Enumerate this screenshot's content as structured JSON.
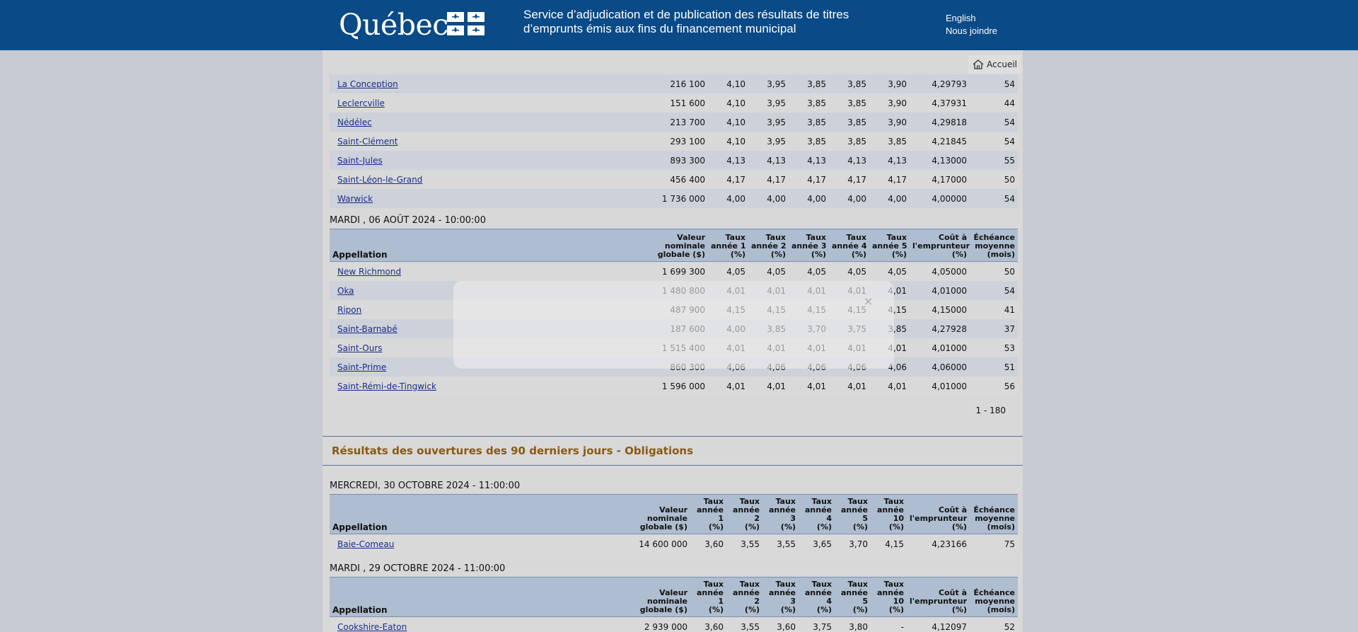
{
  "header": {
    "logo_text": "Québec",
    "title_line1": "Service d’adjudication et de publication des résultats de titres",
    "title_line2": "d’emprunts émis aux fins du financement municipal",
    "link_english": "English",
    "link_contact": "Nous joindre"
  },
  "nav": {
    "home_label": "Accueil"
  },
  "table1": {
    "rows": [
      [
        "La Conception",
        "216 100",
        "4,10",
        "3,95",
        "3,85",
        "3,85",
        "3,90",
        "4,29793",
        "54"
      ],
      [
        "Leclercville",
        "151 600",
        "4,10",
        "3,95",
        "3,85",
        "3,85",
        "3,90",
        "4,37931",
        "44"
      ],
      [
        "Nédélec",
        "213 700",
        "4,10",
        "3,95",
        "3,85",
        "3,85",
        "3,90",
        "4,29818",
        "54"
      ],
      [
        "Saint-Clément",
        "293 100",
        "4,10",
        "3,95",
        "3,85",
        "3,85",
        "3,85",
        "4,21845",
        "54"
      ],
      [
        "Saint-Jules",
        "893 300",
        "4,13",
        "4,13",
        "4,13",
        "4,13",
        "4,13",
        "4,13000",
        "55"
      ],
      [
        "Saint-Léon-le-Grand",
        "456 400",
        "4,17",
        "4,17",
        "4,17",
        "4,17",
        "4,17",
        "4,17000",
        "50"
      ],
      [
        "Warwick",
        "1 736 000",
        "4,00",
        "4,00",
        "4,00",
        "4,00",
        "4,00",
        "4,00000",
        "54"
      ]
    ]
  },
  "table2": {
    "date": "MARDI , 06 AOÛT 2024 - 10:00:00",
    "headers": [
      [
        "Appellation"
      ],
      [
        "Valeur",
        "nominale",
        "globale ($)"
      ],
      [
        "Taux",
        "année 1",
        "(%)"
      ],
      [
        "Taux",
        "année 2",
        "(%)"
      ],
      [
        "Taux",
        "année 3",
        "(%)"
      ],
      [
        "Taux",
        "année 4",
        "(%)"
      ],
      [
        "Taux",
        "année 5",
        "(%)"
      ],
      [
        "Coût à",
        "l'emprunteur",
        "(%)"
      ],
      [
        "Échéance",
        "moyenne",
        "(mois)"
      ]
    ],
    "rows": [
      [
        "New Richmond",
        "1 699 300",
        "4,05",
        "4,05",
        "4,05",
        "4,05",
        "4,05",
        "4,05000",
        "50"
      ],
      [
        "Oka",
        "1 480 800",
        "4,01",
        "4,01",
        "4,01",
        "4,01",
        "4,01",
        "4,01000",
        "54"
      ],
      [
        "Ripon",
        "487 900",
        "4,15",
        "4,15",
        "4,15",
        "4,15",
        "4,15",
        "4,15000",
        "41"
      ],
      [
        "Saint-Barnabé",
        "187 600",
        "4,00",
        "3,85",
        "3,70",
        "3,75",
        "3,85",
        "4,27928",
        "37"
      ],
      [
        "Saint-Ours",
        "1 515 400",
        "4,01",
        "4,01",
        "4,01",
        "4,01",
        "4,01",
        "4,01000",
        "53"
      ],
      [
        "Saint-Prime",
        "860 300",
        "4,06",
        "4,06",
        "4,06",
        "4,06",
        "4,06",
        "4,06000",
        "51"
      ],
      [
        "Saint-Rémi-de-Tingwick",
        "1 596 000",
        "4,01",
        "4,01",
        "4,01",
        "4,01",
        "4,01",
        "4,01000",
        "56"
      ]
    ],
    "pagination": "1 - 180"
  },
  "section_title": "Résultats des ouvertures des 90 derniers jours - Obligations",
  "bond_headers": [
    [
      "Appellation"
    ],
    [
      "Valeur",
      "nominale",
      "globale ($)"
    ],
    [
      "Taux",
      "année",
      "1",
      "(%)"
    ],
    [
      "Taux",
      "année",
      "2",
      "(%)"
    ],
    [
      "Taux",
      "année",
      "3",
      "(%)"
    ],
    [
      "Taux",
      "année",
      "4",
      "(%)"
    ],
    [
      "Taux",
      "année",
      "5",
      "(%)"
    ],
    [
      "Taux",
      "année",
      "10",
      "(%)"
    ],
    [
      "Coût à",
      "l'emprunteur",
      "(%)"
    ],
    [
      "Échéance",
      "moyenne",
      "(mois)"
    ]
  ],
  "table3": {
    "date": "MERCREDI, 30 OCTOBRE 2024 - 11:00:00",
    "rows": [
      [
        "Baie-Comeau",
        "14 600 000",
        "3,60",
        "3,55",
        "3,55",
        "3,65",
        "3,70",
        "4,15",
        "4,23166",
        "75"
      ]
    ]
  },
  "table4": {
    "date": "MARDI , 29 OCTOBRE 2024 - 11:00:00",
    "rows": [
      [
        "Cookshire-Eaton",
        "2 939 000",
        "3,60",
        "3,55",
        "3,60",
        "3,75",
        "3,80",
        "-",
        "4,12097",
        "52"
      ]
    ]
  },
  "modal": {
    "close_glyph": "×"
  }
}
